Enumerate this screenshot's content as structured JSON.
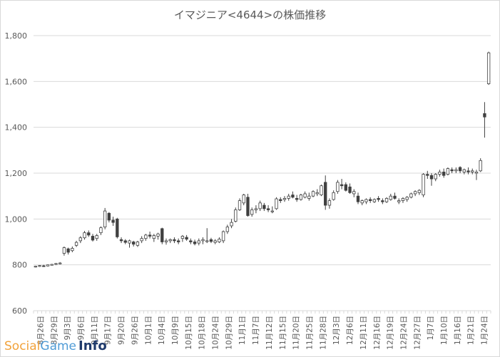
{
  "chart_data": {
    "type": "candlestick",
    "title": "イマジニア<4644>の株価推移",
    "ylim": [
      600,
      1800
    ],
    "yticks": [
      "600",
      "800",
      "1,000",
      "1,200",
      "1,400",
      "1,600",
      "1,800"
    ],
    "grid": true,
    "categories": [
      "8月26日",
      "8月29日",
      "9月3日",
      "9月6日",
      "9月11日",
      "9月17日",
      "9月20日",
      "9月26日",
      "10月1日",
      "10月4日",
      "10月9日",
      "10月15日",
      "10月18日",
      "10月24日",
      "10月29日",
      "11月1日",
      "11月7日",
      "11月12日",
      "11月15日",
      "11月20日",
      "11月25日",
      "11月28日",
      "12月3日",
      "12月6日",
      "12月11日",
      "12月16日",
      "12月19日",
      "12月24日",
      "12月27日",
      "1月7日",
      "1月10日",
      "1月16日",
      "1月21日",
      "1月24日"
    ],
    "series": [
      {
        "values": [
          [
            792,
            796,
            788,
            794
          ],
          [
            794,
            799,
            791,
            797
          ],
          [
            796,
            800,
            792,
            795
          ],
          [
            795,
            801,
            793,
            800
          ],
          [
            800,
            804,
            797,
            802
          ],
          [
            802,
            808,
            799,
            806
          ],
          [
            806,
            812,
            802,
            808
          ],
          [
            850,
            880,
            840,
            875
          ],
          [
            870,
            875,
            845,
            855
          ],
          [
            862,
            880,
            855,
            872
          ],
          [
            885,
            905,
            878,
            898
          ],
          [
            905,
            925,
            895,
            918
          ],
          [
            918,
            948,
            910,
            940
          ],
          [
            940,
            950,
            922,
            930
          ],
          [
            925,
            935,
            902,
            908
          ],
          [
            915,
            935,
            905,
            928
          ],
          [
            940,
            968,
            930,
            962
          ],
          [
            965,
            1048,
            955,
            1035
          ],
          [
            1025,
            1030,
            985,
            995
          ],
          [
            995,
            1010,
            970,
            985
          ],
          [
            1000,
            1005,
            915,
            922
          ],
          [
            910,
            920,
            895,
            905
          ],
          [
            905,
            912,
            890,
            898
          ],
          [
            895,
            910,
            875,
            905
          ],
          [
            900,
            905,
            880,
            890
          ],
          [
            885,
            905,
            878,
            900
          ],
          [
            905,
            925,
            895,
            915
          ],
          [
            915,
            935,
            905,
            930
          ],
          [
            930,
            945,
            915,
            925
          ],
          [
            915,
            935,
            900,
            928
          ],
          [
            925,
            940,
            910,
            935
          ],
          [
            958,
            962,
            890,
            900
          ],
          [
            900,
            915,
            888,
            905
          ],
          [
            905,
            915,
            895,
            910
          ],
          [
            910,
            920,
            895,
            905
          ],
          [
            905,
            915,
            890,
            900
          ],
          [
            915,
            930,
            900,
            925
          ],
          [
            920,
            930,
            905,
            912
          ],
          [
            905,
            915,
            890,
            900
          ],
          [
            900,
            910,
            885,
            892
          ],
          [
            895,
            915,
            885,
            905
          ],
          [
            905,
            920,
            890,
            910
          ],
          [
            905,
            960,
            895,
            905
          ],
          [
            910,
            918,
            895,
            902
          ],
          [
            898,
            912,
            890,
            905
          ],
          [
            900,
            920,
            895,
            912
          ],
          [
            905,
            950,
            895,
            945
          ],
          [
            945,
            975,
            935,
            965
          ],
          [
            970,
            1000,
            960,
            985
          ],
          [
            990,
            1050,
            985,
            1040
          ],
          [
            1040,
            1090,
            1035,
            1080
          ],
          [
            1070,
            1110,
            1060,
            1105
          ],
          [
            1095,
            1110,
            1010,
            1015
          ],
          [
            1020,
            1050,
            1010,
            1040
          ],
          [
            1040,
            1060,
            1025,
            1045
          ],
          [
            1045,
            1080,
            1035,
            1070
          ],
          [
            1060,
            1070,
            1035,
            1045
          ],
          [
            1045,
            1060,
            1030,
            1040
          ],
          [
            1035,
            1055,
            1025,
            1035
          ],
          [
            1045,
            1095,
            1040,
            1088
          ],
          [
            1085,
            1095,
            1070,
            1080
          ],
          [
            1085,
            1100,
            1075,
            1090
          ],
          [
            1090,
            1110,
            1080,
            1100
          ],
          [
            1105,
            1120,
            1090,
            1095
          ],
          [
            1090,
            1105,
            1075,
            1085
          ],
          [
            1085,
            1110,
            1080,
            1105
          ],
          [
            1095,
            1120,
            1090,
            1110
          ],
          [
            1090,
            1115,
            1080,
            1100
          ],
          [
            1100,
            1125,
            1095,
            1120
          ],
          [
            1110,
            1130,
            1100,
            1115
          ],
          [
            1105,
            1150,
            1100,
            1145
          ],
          [
            1160,
            1190,
            1040,
            1060
          ],
          [
            1060,
            1090,
            1045,
            1080
          ],
          [
            1085,
            1125,
            1080,
            1115
          ],
          [
            1120,
            1170,
            1110,
            1160
          ],
          [
            1150,
            1175,
            1130,
            1145
          ],
          [
            1150,
            1160,
            1120,
            1125
          ],
          [
            1140,
            1155,
            1110,
            1115
          ],
          [
            1110,
            1130,
            1095,
            1120
          ],
          [
            1100,
            1115,
            1065,
            1075
          ],
          [
            1070,
            1085,
            1060,
            1080
          ],
          [
            1075,
            1090,
            1065,
            1085
          ],
          [
            1085,
            1095,
            1070,
            1080
          ],
          [
            1075,
            1090,
            1070,
            1085
          ],
          [
            1090,
            1100,
            1075,
            1085
          ],
          [
            1080,
            1090,
            1065,
            1075
          ],
          [
            1075,
            1095,
            1070,
            1090
          ],
          [
            1085,
            1110,
            1080,
            1100
          ],
          [
            1100,
            1115,
            1085,
            1090
          ],
          [
            1075,
            1090,
            1065,
            1080
          ],
          [
            1080,
            1095,
            1070,
            1090
          ],
          [
            1085,
            1100,
            1075,
            1095
          ],
          [
            1095,
            1115,
            1090,
            1110
          ],
          [
            1110,
            1125,
            1100,
            1120
          ],
          [
            1115,
            1130,
            1105,
            1125
          ],
          [
            1105,
            1200,
            1095,
            1195
          ],
          [
            1195,
            1210,
            1175,
            1190
          ],
          [
            1190,
            1200,
            1145,
            1175
          ],
          [
            1175,
            1200,
            1165,
            1195
          ],
          [
            1195,
            1215,
            1185,
            1205
          ],
          [
            1205,
            1220,
            1180,
            1190
          ],
          [
            1195,
            1225,
            1190,
            1220
          ],
          [
            1215,
            1225,
            1200,
            1210
          ],
          [
            1210,
            1225,
            1200,
            1215
          ],
          [
            1225,
            1230,
            1200,
            1210
          ],
          [
            1205,
            1220,
            1195,
            1215
          ],
          [
            1210,
            1225,
            1195,
            1205
          ],
          [
            1205,
            1220,
            1195,
            1210
          ],
          [
            1200,
            1215,
            1170,
            1205
          ],
          [
            1210,
            1265,
            1205,
            1255
          ],
          [
            1460,
            1510,
            1355,
            1445
          ],
          [
            1590,
            1730,
            1585,
            1725
          ]
        ]
      }
    ]
  },
  "watermark": {
    "social": "Social",
    "game": "Game",
    "info": "Info"
  },
  "colors": {
    "up_fill": "#ffffff",
    "down_fill": "#404040",
    "line": "#404040",
    "grid": "#d9d9d9",
    "axis_text": "#595959"
  }
}
